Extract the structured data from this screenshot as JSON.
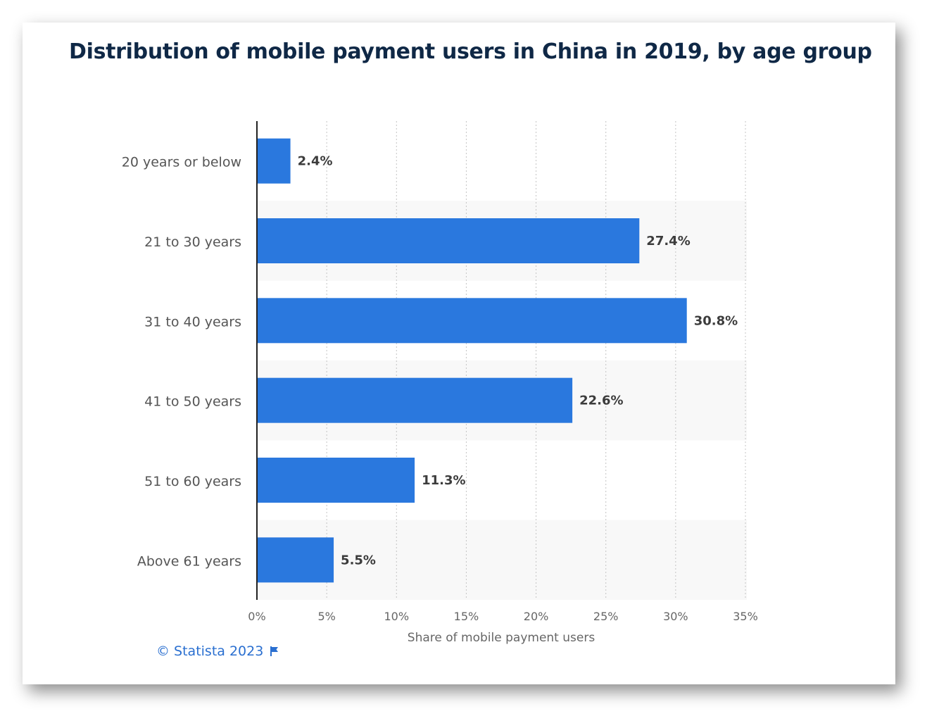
{
  "title": "Distribution of mobile payment users in China in 2019, by age group",
  "credit": "© Statista 2023",
  "colors": {
    "bar": "#2a78de",
    "title": "#0f2846",
    "link": "#2a6fd0",
    "band": "#f8f8f8"
  },
  "chart_data": {
    "type": "bar",
    "orientation": "horizontal",
    "categories": [
      "20 years or below",
      "21 to 30 years",
      "31 to 40 years",
      "41 to 50 years",
      "51 to 60 years",
      "Above 61 years"
    ],
    "values": [
      2.4,
      27.4,
      30.8,
      22.6,
      11.3,
      5.5
    ],
    "value_labels": [
      "2.4%",
      "27.4%",
      "30.8%",
      "22.6%",
      "11.3%",
      "5.5%"
    ],
    "xlabel": "Share of mobile payment users",
    "ylabel": "",
    "xlim": [
      0,
      35
    ],
    "xticks": [
      "0%",
      "5%",
      "10%",
      "15%",
      "20%",
      "25%",
      "30%",
      "35%"
    ],
    "grid": "vertical dotted",
    "legend": "none"
  }
}
